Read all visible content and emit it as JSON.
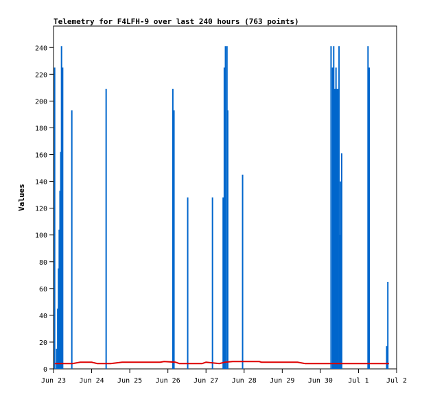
{
  "chart_data": {
    "type": "line",
    "title": "Telemetry for F4LFH-9 over last 240 hours (763 points)",
    "xlabel": "",
    "ylabel": "Values",
    "x_ticks": [
      "Jun 23",
      "Jun 24",
      "Jun 25",
      "Jun 26",
      "Jun 27",
      "Jun 28",
      "Jun 29",
      "Jun 30",
      "Jul 1",
      "Jul 2"
    ],
    "xlim": [
      0,
      9
    ],
    "y_ticks": [
      0,
      20,
      40,
      60,
      80,
      100,
      120,
      140,
      160,
      180,
      200,
      220,
      240
    ],
    "ylim": [
      0,
      256
    ],
    "grid": false,
    "series": [
      {
        "color": "#0066cc",
        "style": "spikes",
        "points": [
          {
            "x": 0.03,
            "y": 225
          },
          {
            "x": 0.08,
            "y": 15
          },
          {
            "x": 0.11,
            "y": 45
          },
          {
            "x": 0.13,
            "y": 75
          },
          {
            "x": 0.15,
            "y": 104
          },
          {
            "x": 0.17,
            "y": 133
          },
          {
            "x": 0.19,
            "y": 162
          },
          {
            "x": 0.21,
            "y": 241
          },
          {
            "x": 0.24,
            "y": 225
          },
          {
            "x": 0.48,
            "y": 193
          },
          {
            "x": 1.38,
            "y": 209
          },
          {
            "x": 3.13,
            "y": 209
          },
          {
            "x": 3.16,
            "y": 193
          },
          {
            "x": 3.52,
            "y": 128
          },
          {
            "x": 4.17,
            "y": 128
          },
          {
            "x": 4.45,
            "y": 128
          },
          {
            "x": 4.48,
            "y": 225
          },
          {
            "x": 4.51,
            "y": 241
          },
          {
            "x": 4.55,
            "y": 241
          },
          {
            "x": 4.57,
            "y": 193
          },
          {
            "x": 4.96,
            "y": 145
          },
          {
            "x": 7.28,
            "y": 241
          },
          {
            "x": 7.32,
            "y": 225
          },
          {
            "x": 7.35,
            "y": 241
          },
          {
            "x": 7.38,
            "y": 209
          },
          {
            "x": 7.41,
            "y": 225
          },
          {
            "x": 7.44,
            "y": 209
          },
          {
            "x": 7.46,
            "y": 209
          },
          {
            "x": 7.49,
            "y": 241
          },
          {
            "x": 7.51,
            "y": 100
          },
          {
            "x": 7.53,
            "y": 140
          },
          {
            "x": 7.56,
            "y": 161
          },
          {
            "x": 8.25,
            "y": 241
          },
          {
            "x": 8.28,
            "y": 225
          },
          {
            "x": 8.74,
            "y": 17
          },
          {
            "x": 8.77,
            "y": 65
          }
        ]
      },
      {
        "color": "#dd0000",
        "style": "line",
        "points": [
          {
            "x": 0.03,
            "y": 4
          },
          {
            "x": 0.5,
            "y": 4
          },
          {
            "x": 0.7,
            "y": 5
          },
          {
            "x": 1.0,
            "y": 5
          },
          {
            "x": 1.15,
            "y": 4
          },
          {
            "x": 1.5,
            "y": 4
          },
          {
            "x": 1.8,
            "y": 5
          },
          {
            "x": 2.8,
            "y": 5
          },
          {
            "x": 2.9,
            "y": 5.5
          },
          {
            "x": 3.2,
            "y": 5
          },
          {
            "x": 3.3,
            "y": 4
          },
          {
            "x": 3.9,
            "y": 4
          },
          {
            "x": 4.0,
            "y": 5
          },
          {
            "x": 4.35,
            "y": 4
          },
          {
            "x": 4.5,
            "y": 5
          },
          {
            "x": 4.7,
            "y": 5.5
          },
          {
            "x": 5.4,
            "y": 5.5
          },
          {
            "x": 5.45,
            "y": 5
          },
          {
            "x": 6.4,
            "y": 5
          },
          {
            "x": 6.6,
            "y": 4
          },
          {
            "x": 8.0,
            "y": 4
          },
          {
            "x": 8.6,
            "y": 4
          },
          {
            "x": 8.8,
            "y": 4
          }
        ]
      }
    ]
  }
}
